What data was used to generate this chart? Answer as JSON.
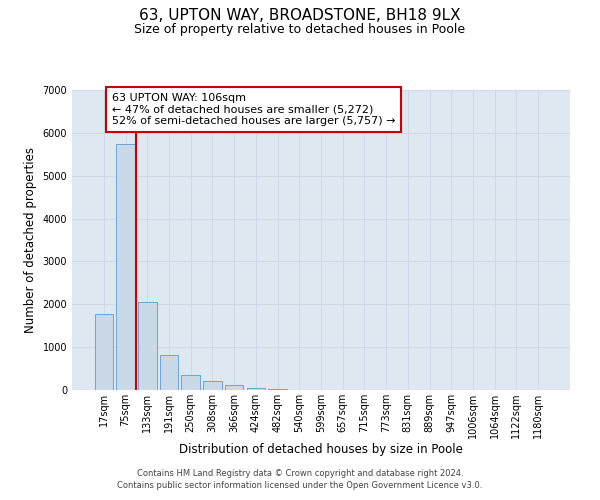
{
  "title_line1": "63, UPTON WAY, BROADSTONE, BH18 9LX",
  "title_line2": "Size of property relative to detached houses in Poole",
  "xlabel": "Distribution of detached houses by size in Poole",
  "ylabel": "Number of detached properties",
  "bin_labels": [
    "17sqm",
    "75sqm",
    "133sqm",
    "191sqm",
    "250sqm",
    "308sqm",
    "366sqm",
    "424sqm",
    "482sqm",
    "540sqm",
    "599sqm",
    "657sqm",
    "715sqm",
    "773sqm",
    "831sqm",
    "889sqm",
    "947sqm",
    "1006sqm",
    "1064sqm",
    "1122sqm",
    "1180sqm"
  ],
  "bar_heights": [
    1780,
    5740,
    2060,
    820,
    360,
    220,
    110,
    55,
    30,
    10,
    5,
    2,
    1,
    0,
    0,
    0,
    0,
    0,
    0,
    0,
    0
  ],
  "bar_color": "#c9d9e8",
  "bar_edge_color": "#5b9bd5",
  "vline_color": "#cc0000",
  "vline_position": 1.48,
  "annotation_title": "63 UPTON WAY: 106sqm",
  "annotation_line2": "← 47% of detached houses are smaller (5,272)",
  "annotation_line3": "52% of semi-detached houses are larger (5,757) →",
  "annotation_box_color": "#cc0000",
  "annotation_text_color": "#000000",
  "ylim_max": 7000,
  "yticks": [
    0,
    1000,
    2000,
    3000,
    4000,
    5000,
    6000,
    7000
  ],
  "grid_color": "#d0d8e8",
  "background_color": "#dde8f0",
  "footer_line1": "Contains HM Land Registry data © Crown copyright and database right 2024.",
  "footer_line2": "Contains public sector information licensed under the Open Government Licence v3.0.",
  "title_fontsize": 11,
  "subtitle_fontsize": 9,
  "axis_label_fontsize": 8.5,
  "tick_fontsize": 7,
  "annotation_fontsize": 8,
  "footer_fontsize": 6
}
